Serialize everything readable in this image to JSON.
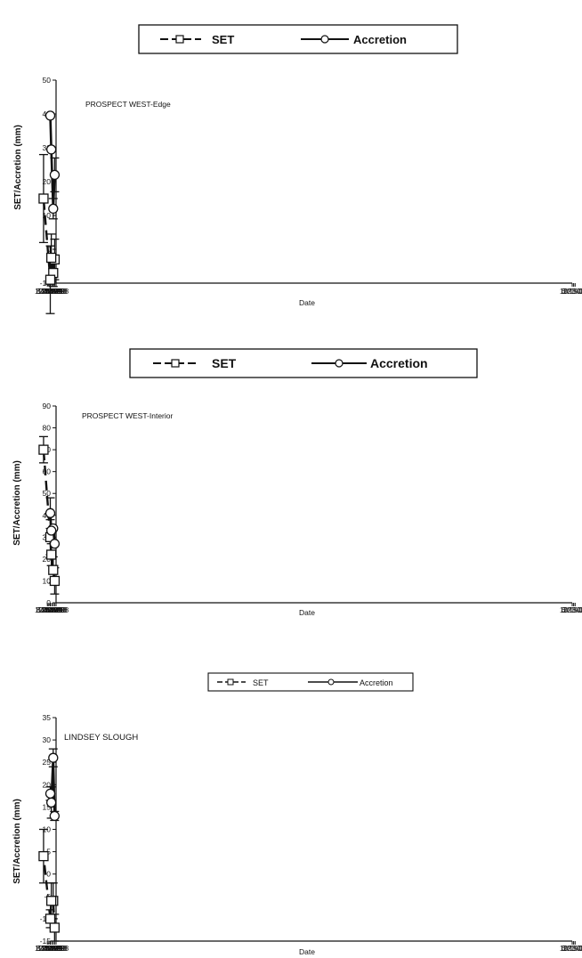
{
  "chart_data": [
    {
      "type": "line",
      "title": "PROSPECT WEST-Edge",
      "xlabel": "Date",
      "ylabel": "SET/Accretion (mm)",
      "x_tick_labels": [
        "4/15/98",
        "7/24/98",
        "11/1/98",
        "2/9/99",
        "5/20/99",
        "8/28/99",
        "12/6/99",
        "3/15/00",
        "6/23/00",
        "10/1/00"
      ],
      "ylim": [
        -10,
        50
      ],
      "y_ticks": [
        -10,
        0,
        10,
        20,
        30,
        40,
        50
      ],
      "legend": [
        "SET",
        "Accretion"
      ],
      "series": [
        {
          "name": "SET",
          "style": "dashed",
          "x": [
            "1998-07-20",
            "1998-10-29",
            "1999-03-10",
            "1999-05-19",
            "2000-08-25"
          ],
          "y": [
            -3,
            -7,
            -2.5,
            -9,
            15
          ],
          "err": [
            6,
            4,
            7,
            10,
            13
          ]
        },
        {
          "name": "Accretion",
          "style": "solid",
          "x": [
            "1998-07-20",
            "1998-10-29",
            "1999-03-10",
            "1999-05-19"
          ],
          "y": [
            22,
            12,
            29.5,
            39.5
          ],
          "err": [
            5,
            3,
            0,
            0
          ]
        }
      ]
    },
    {
      "type": "line",
      "title": "PROSPECT WEST-Interior",
      "xlabel": "Date",
      "ylabel": "SET/Accretion (mm)",
      "x_tick_labels": [
        "4/15/98",
        "7/24/98",
        "11/1/98",
        "2/9/99",
        "5/20/99",
        "8/28/99",
        "12/6/99",
        "3/15/00",
        "6/23/00",
        "10/1/00"
      ],
      "ylim": [
        0,
        90
      ],
      "y_ticks": [
        0,
        10,
        20,
        30,
        40,
        50,
        60,
        70,
        80,
        90
      ],
      "legend": [
        "SET",
        "Accretion"
      ],
      "series": [
        {
          "name": "SET",
          "style": "dashed",
          "x": [
            "1998-07-20",
            "1998-10-29",
            "1999-03-10",
            "1999-05-19",
            "2000-08-25"
          ],
          "y": [
            10,
            15,
            22,
            30,
            70
          ],
          "err": [
            6,
            6,
            5,
            8,
            6
          ]
        },
        {
          "name": "Accretion",
          "style": "solid",
          "x": [
            "1998-07-20",
            "1998-10-29",
            "1999-03-10",
            "1999-05-19"
          ],
          "y": [
            27,
            34,
            33,
            41
          ],
          "err": [
            0,
            0,
            0,
            7
          ]
        }
      ]
    },
    {
      "type": "line",
      "title": "LINDSEY SLOUGH",
      "xlabel": "Date",
      "ylabel": "SET/Accretion (mm)",
      "x_tick_labels": [
        "4/15/98",
        "7/24/98",
        "11/1/98",
        "2/9/99",
        "5/20/99",
        "8/28/99",
        "12/6/99",
        "3/15/00",
        "6/23/00",
        "10/1/00"
      ],
      "ylim": [
        -15,
        35
      ],
      "y_ticks": [
        -15,
        -10,
        -5,
        0,
        5,
        10,
        15,
        20,
        25,
        30,
        35
      ],
      "legend": [
        "SET",
        "Accretion"
      ],
      "series": [
        {
          "name": "SET",
          "style": "dashed",
          "x": [
            "1998-07-26",
            "1998-10-29",
            "1999-03-10",
            "1999-05-19",
            "2000-08-25"
          ],
          "y": [
            -12,
            -6,
            -6,
            -10,
            4
          ],
          "err": [
            3,
            4,
            4,
            2,
            6
          ]
        },
        {
          "name": "Accretion",
          "style": "solid",
          "x": [
            "1998-07-26",
            "1998-10-29",
            "1999-03-10",
            "1999-05-19"
          ],
          "y": [
            13,
            26,
            16,
            18
          ],
          "err": [
            1,
            2,
            3.5,
            1.5
          ]
        }
      ]
    }
  ]
}
